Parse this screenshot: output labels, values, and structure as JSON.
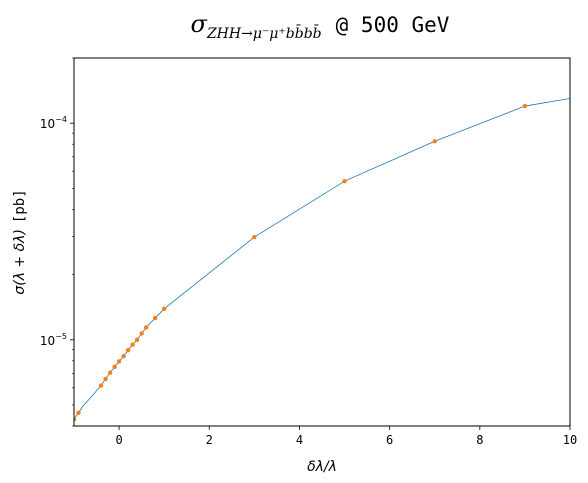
{
  "chart_data": {
    "type": "line",
    "title": {
      "sigma": "σ",
      "subscript": "ZHH→μ⁻μ⁺bb̄bb̄",
      "rest": "@ 500 GeV"
    },
    "xlabel": "δλ/λ",
    "ylabel": {
      "math": "σ(λ + δλ)",
      "unit": "[pb]"
    },
    "xlim": [
      -1,
      10
    ],
    "ylim": [
      4e-06,
      0.0002
    ],
    "yscale": "log",
    "grid": false,
    "x_ticks": [
      "0",
      "2",
      "4",
      "6",
      "8",
      "10"
    ],
    "y_ticks": [
      {
        "base": "10",
        "exponent": "−5"
      },
      {
        "base": "10",
        "exponent": "−4"
      }
    ],
    "series": [
      {
        "kind": "line",
        "color": "#1f77b4",
        "x": [
          -1.0,
          -0.9,
          -0.8,
          -0.6,
          -0.4,
          -0.3,
          -0.2,
          -0.1,
          0.0,
          0.1,
          0.2,
          0.3,
          0.4,
          0.5,
          0.6,
          0.8,
          1.0,
          3.0,
          5.0,
          7.0,
          9.0,
          10.0
        ],
        "y": [
          4.3e-06,
          4.6e-06,
          4.95e-06,
          5.5e-06,
          6.15e-06,
          6.6e-06,
          7.05e-06,
          7.5e-06,
          7.95e-06,
          8.4e-06,
          8.95e-06,
          9.5e-06,
          1e-05,
          1.07e-05,
          1.14e-05,
          1.26e-05,
          1.39e-05,
          2.98e-05,
          5.4e-05,
          8.25e-05,
          0.00012,
          0.00013
        ]
      },
      {
        "kind": "scatter",
        "color": "#ff7f0e",
        "x": [
          -1.0,
          -0.9,
          -0.4,
          -0.3,
          -0.2,
          -0.1,
          0.0,
          0.1,
          0.2,
          0.3,
          0.4,
          0.5,
          0.6,
          0.8,
          1.0,
          3.0,
          5.0,
          7.0,
          9.0
        ],
        "y": [
          4.3e-06,
          4.6e-06,
          6.15e-06,
          6.6e-06,
          7.05e-06,
          7.5e-06,
          7.95e-06,
          8.4e-06,
          8.95e-06,
          9.5e-06,
          1e-05,
          1.07e-05,
          1.14e-05,
          1.26e-05,
          1.39e-05,
          2.98e-05,
          5.4e-05,
          8.25e-05,
          0.00012
        ]
      }
    ]
  }
}
